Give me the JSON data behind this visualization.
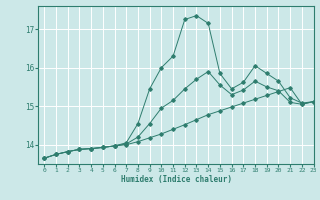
{
  "title": "",
  "xlabel": "Humidex (Indice chaleur)",
  "bg_color": "#cce8e8",
  "grid_color": "#ffffff",
  "line_color": "#2e7d6e",
  "xlim": [
    -0.5,
    23
  ],
  "ylim": [
    13.5,
    17.6
  ],
  "yticks": [
    14,
    15,
    16,
    17
  ],
  "xticks": [
    0,
    1,
    2,
    3,
    4,
    5,
    6,
    7,
    8,
    9,
    10,
    11,
    12,
    13,
    14,
    15,
    16,
    17,
    18,
    19,
    20,
    21,
    22,
    23
  ],
  "series": [
    {
      "x": [
        0,
        1,
        2,
        3,
        4,
        5,
        6,
        7,
        8,
        9,
        10,
        11,
        12,
        13,
        14,
        15,
        16,
        17,
        18,
        19,
        20,
        21,
        22,
        23
      ],
      "y": [
        13.65,
        13.75,
        13.82,
        13.88,
        13.9,
        13.93,
        13.97,
        14.0,
        14.08,
        14.18,
        14.28,
        14.4,
        14.52,
        14.65,
        14.78,
        14.88,
        14.98,
        15.08,
        15.18,
        15.28,
        15.38,
        15.48,
        15.05,
        15.12
      ]
    },
    {
      "x": [
        0,
        1,
        2,
        3,
        4,
        5,
        6,
        7,
        8,
        9,
        10,
        11,
        12,
        13,
        14,
        15,
        16,
        17,
        18,
        19,
        20,
        21,
        22,
        23
      ],
      "y": [
        13.65,
        13.75,
        13.82,
        13.88,
        13.9,
        13.93,
        13.97,
        14.05,
        14.55,
        15.45,
        16.0,
        16.3,
        17.25,
        17.35,
        17.15,
        15.85,
        15.45,
        15.62,
        16.05,
        15.85,
        15.65,
        15.22,
        15.08,
        15.12
      ]
    },
    {
      "x": [
        0,
        1,
        2,
        3,
        4,
        5,
        6,
        7,
        8,
        9,
        10,
        11,
        12,
        13,
        14,
        15,
        16,
        17,
        18,
        19,
        20,
        21,
        22,
        23
      ],
      "y": [
        13.65,
        13.75,
        13.82,
        13.88,
        13.9,
        13.93,
        13.97,
        14.02,
        14.2,
        14.55,
        14.95,
        15.15,
        15.45,
        15.7,
        15.9,
        15.55,
        15.3,
        15.42,
        15.65,
        15.5,
        15.4,
        15.1,
        15.05,
        15.12
      ]
    }
  ]
}
